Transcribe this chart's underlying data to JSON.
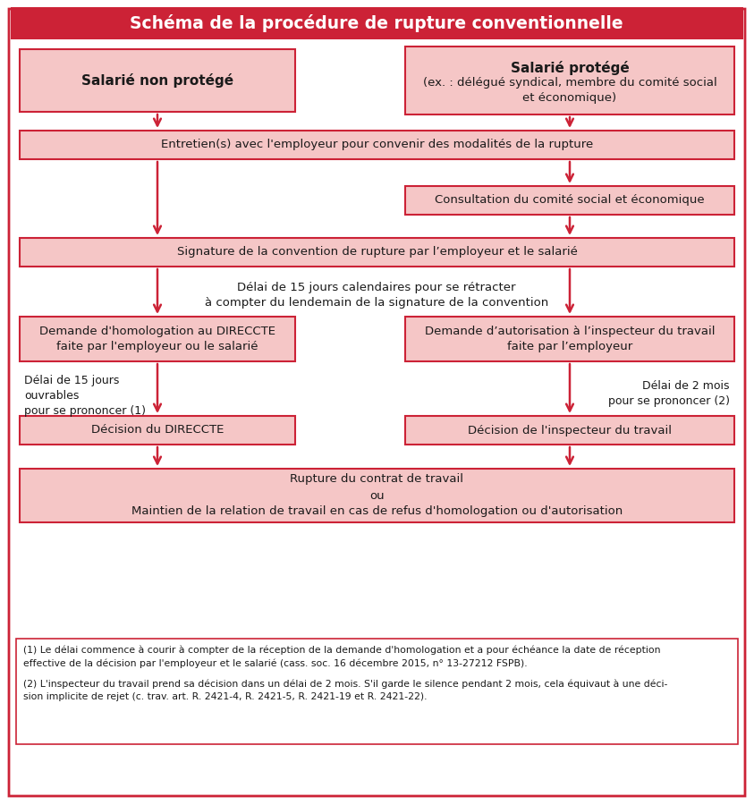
{
  "title": "Schéma de la procédure de rupture conventionnelle",
  "title_bg": "#cc2236",
  "title_color": "#ffffff",
  "outer_border_color": "#cc2236",
  "bg_color": "#ffffff",
  "box_fill": "#f5c6c6",
  "box_edge": "#cc2236",
  "arrow_color": "#cc2236",
  "text_color": "#1a1a1a",
  "footnote_color": "#1a1a1a",
  "snp_label": "Salarié non protégé",
  "sp_label_line1": "Salarié protégé",
  "sp_label_rest": "(ex. : délégué syndical, membre du comité social\net économique)",
  "entretien_label": "Entretien(s) avec l'employeur pour convenir des modalités de la rupture",
  "consultation_label": "Consultation du comité social et économique",
  "signature_label": "Signature de la convention de rupture par l’employeur et le salarié",
  "delai_label": "Délai de 15 jours calendaires pour se rétracter\nà compter du lendemain de la signature de la convention",
  "direccte_label": "Demande d'homologation au DIRECCTE\nfaite par l'employeur ou le salarié",
  "autorisation_label": "Demande d’autorisation à l’inspecteur du travail\nfaite par l’employeur",
  "delai15j_label": "Délai de 15 jours\nouvrables\npour se prononcer (1)",
  "delai2m_label": "Délai de 2 mois\npour se prononcer (2)",
  "dec_dir_label": "Décision du DIRECCTE",
  "dec_insp_label": "Décision de l'inspecteur du travail",
  "rupture_label": "Rupture du contrat de travail\nou\nMaintien de la relation de travail en cas de refus d'homologation ou d'autorisation",
  "fn1": "(1) Le délai commence à courir à compter de la réception de la demande d'homologation et a pour échéance la date de réception effective de la décision par l'employeur et le salarié (cass. soc. 16 décembre 2015, n° 13-27212 FSPB).",
  "fn2": "(2) L'inspecteur du travail prend sa décision dans un délai de 2 mois. S'il garde le silence pendant 2 mois, cela équivaut à une déci-sion implicite de rejet (c. trav. art. R. 2421-4, R. 2421-5, R. 2421-19 et R. 2421-22)."
}
